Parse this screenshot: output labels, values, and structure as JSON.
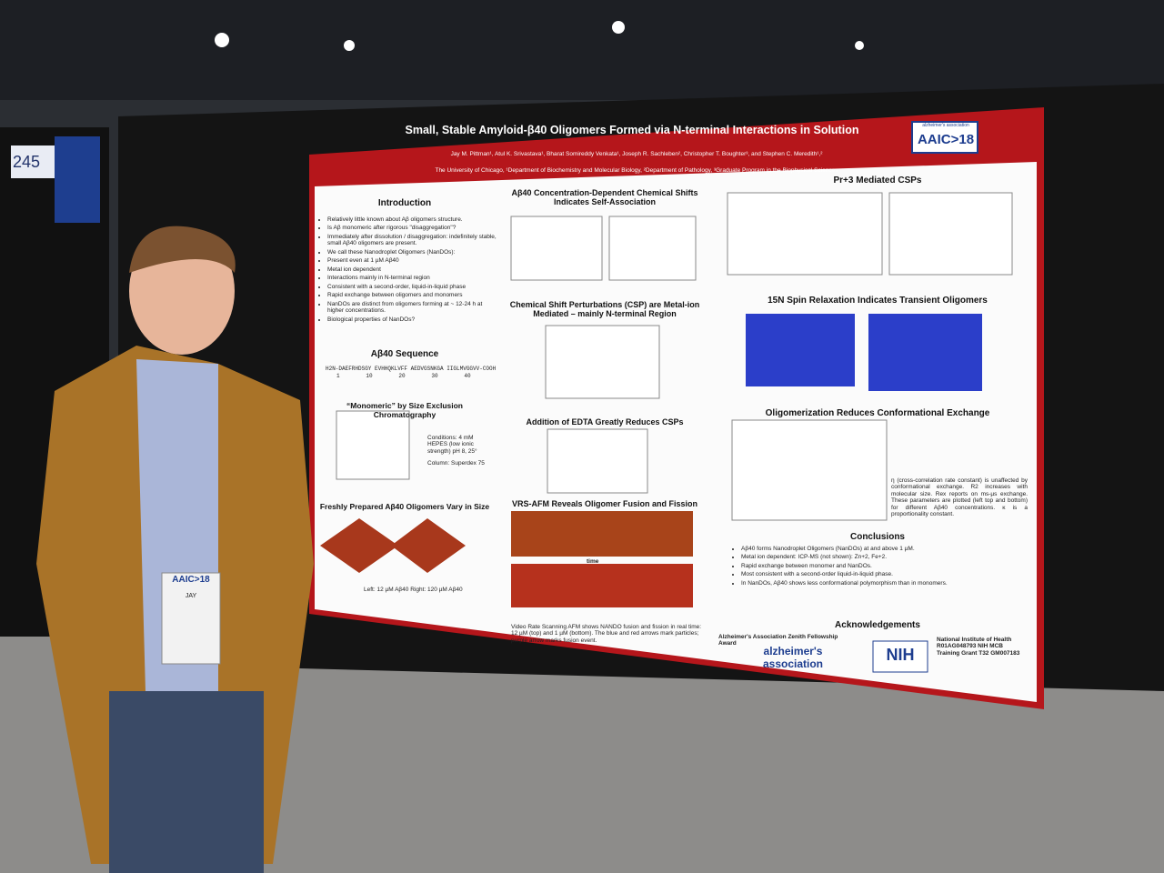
{
  "booth_number": "245",
  "poster": {
    "title": "Small, Stable Amyloid-β40 Oligomers Formed via N-terminal Interactions in Solution",
    "authors": "Jay M. Pittman¹, Atul K. Srivastava¹, Bharat Somireddy Venkata¹, Joseph R. Sachleben², Christopher T. Boughter³, and Stephen C. Meredith¹,²",
    "affiliations": "The University of Chicago, ¹Department of Biochemistry and Molecular Biology, ²Department of Pathology, ³Graduate Program in the Biophysical Sciences",
    "conference_logo": {
      "top": "alzheimer's association",
      "main": "AAIC>18"
    },
    "introduction": {
      "heading": "Introduction",
      "bullets": [
        "Relatively little known about Aβ oligomers structure.",
        "Is Aβ monomeric after rigorous \"disaggregation\"?",
        "Immediately after dissolution / disaggregation: indefinitely stable, small Aβ40 oligomers are present.",
        "We call these Nanodroplet Oligomers (NanDOs):",
        "Present even at 1 µM Aβ40",
        "Metal ion dependent",
        "Interactions mainly in N-terminal region",
        "Consistent with a second-order, liquid-in-liquid phase",
        "Rapid exchange between oligomers and monomers",
        "NanDOs are distinct from oligomers forming at ~ 12-24 h at higher concentrations.",
        "Biological properties of NanDOs?"
      ]
    },
    "sequence": {
      "heading": "Aβ40 Sequence",
      "text": "H2N-DAEFRHDSGY EVHHQKLVFF AEDVGSNKGA IIGLMVGGVV-COOH",
      "positions": "1        10        20        30        40"
    },
    "sec": {
      "heading": "“Monomeric” by Size Exclusion Chromatography",
      "conditions": "Conditions: 4 mM HEPES (low ionic strength) pH 8, 25°",
      "column": "Column: Superdex 75"
    },
    "afm_left": {
      "heading": "Freshly Prepared Aβ40 Oligomers Vary in Size",
      "caption": "Left: 12 µM Aβ40   Right: 120 µM Aβ40"
    },
    "middle": [
      {
        "heading": "Aβ40 Concentration-Dependent Chemical Shifts Indicates Self-Association"
      },
      {
        "heading": "Chemical Shift Perturbations (CSP) are Metal-ion Mediated – mainly N-terminal Region"
      },
      {
        "heading": "Addition of EDTA Greatly Reduces CSPs"
      },
      {
        "heading": "VRS-AFM Reveals Oligomer Fusion and Fission"
      }
    ],
    "time_label": "time",
    "afm_caption": "Video Rate Scanning AFM shows NANDO fusion and fission in real time: 12 µM (top) and 1 µM (bottom). The blue and red arrows mark particles; purple arrow marks fusion event.",
    "right": [
      {
        "heading": "Pr+3 Mediated CSPs"
      },
      {
        "heading": "15N Spin Relaxation Indicates Transient Oligomers"
      },
      {
        "heading": "Oligomerization Reduces Conformational Exchange"
      }
    ],
    "exchange_note": "η (cross-correlation rate constant) is unaffected by conformational exchange. R2 increases with molecular size. Rex reports on ms-µs exchange. These parameters are plotted (left top and bottom) for different Aβ40 concentrations. κ is a proportionality constant.",
    "conclusions": {
      "heading": "Conclusions",
      "bullets": [
        "Aβ40 forms Nanodroplet Oligomers (NanDOs) at and above 1 µM.",
        "Metal ion dependent: ICP-MS (not shown): Zn+2, Fe+2.",
        "Rapid exchange between monomer and NanDOs.",
        "Most consistent with a second-order liquid-in-liquid phase.",
        "In NanDOs, Aβ40 shows less conformational polymorphism than in monomers."
      ]
    },
    "acknowledgements": {
      "heading": "Acknowledgements",
      "award": "Alzheimer's Association Zenith Fellowship Award",
      "grant": "National Institute of Health R01AG048793 NIH MCB Training Grant T32 GM007183",
      "alz_logo": "alzheimer's association",
      "nih_logo": "NIH"
    }
  },
  "badge": {
    "logo": "AAIC>18",
    "name": "JAY"
  }
}
